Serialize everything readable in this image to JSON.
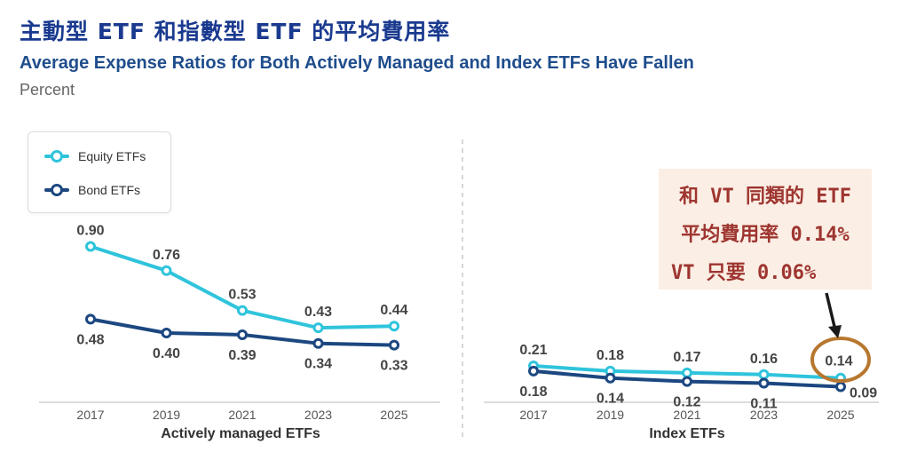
{
  "title_zh": "主動型 ETF 和指數型 ETF 的平均費用率",
  "title_en": "Average Expense Ratios for Both Actively Managed and Index ETFs Have Fallen",
  "unit": "Percent",
  "legend": [
    {
      "name": "Equity ETFs",
      "color": "#2fc4dc"
    },
    {
      "name": "Bond ETFs",
      "color": "#1c4780"
    }
  ],
  "callout": {
    "lines": [
      "和 VT 同類的 ETF",
      "平均費用率 0.14%",
      "VT 只要 0.06%"
    ],
    "color": "#9e3530",
    "marker_color": "#b8772f"
  },
  "chart_data": [
    {
      "type": "line",
      "xlabel": "Actively managed ETFs",
      "categories": [
        "2017",
        "2019",
        "2021",
        "2023",
        "2025"
      ],
      "series": [
        {
          "name": "Equity ETFs",
          "values": [
            0.9,
            0.76,
            0.53,
            0.43,
            0.44
          ],
          "labels": [
            "0.90",
            "0.76",
            "0.53",
            "0.43",
            "0.44"
          ]
        },
        {
          "name": "Bond ETFs",
          "values": [
            0.48,
            0.4,
            0.39,
            0.34,
            0.33
          ],
          "labels": [
            "0.48",
            "0.40",
            "0.39",
            "0.34",
            "0.33"
          ]
        }
      ]
    },
    {
      "type": "line",
      "xlabel": "Index ETFs",
      "categories": [
        "2017",
        "2019",
        "2021",
        "2023",
        "2025"
      ],
      "series": [
        {
          "name": "Equity ETFs",
          "values": [
            0.21,
            0.18,
            0.17,
            0.16,
            0.14
          ],
          "labels": [
            "0.21",
            "0.18",
            "0.17",
            "0.16",
            "0.14"
          ]
        },
        {
          "name": "Bond ETFs",
          "values": [
            0.18,
            0.14,
            0.12,
            0.11,
            0.09
          ],
          "labels": [
            "0.18",
            "0.14",
            "0.12",
            "0.11",
            "0.09"
          ]
        }
      ]
    }
  ]
}
